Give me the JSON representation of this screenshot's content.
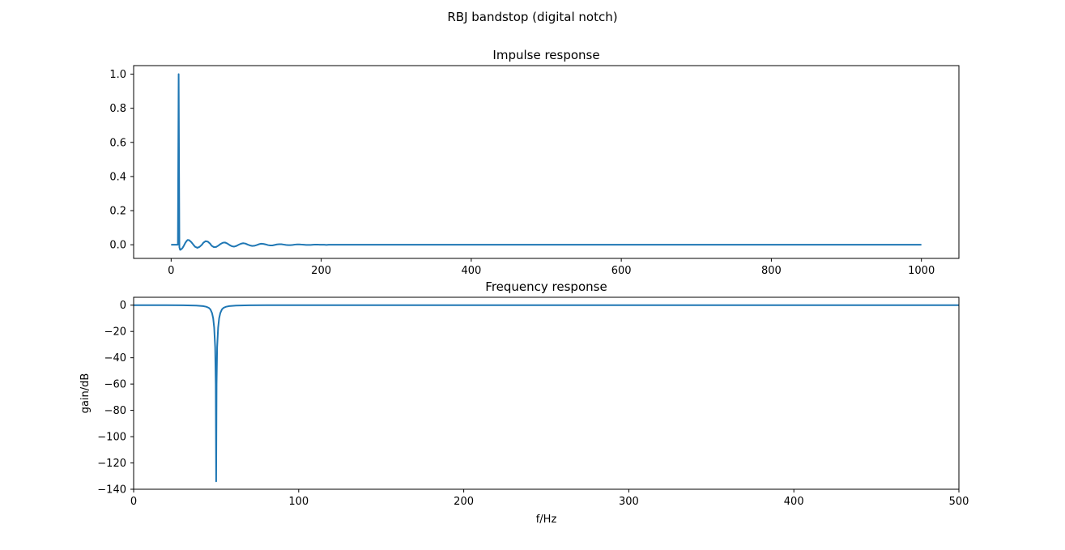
{
  "figure": {
    "suptitle": "RBJ bandstop (digital notch)"
  },
  "colors": {
    "line": "#1f77b4",
    "axes": "#000000",
    "background": "#ffffff"
  },
  "chart_data": [
    {
      "type": "line",
      "title": "Impulse response",
      "xlabel": "",
      "ylabel": "",
      "xlim": [
        -50,
        1050
      ],
      "ylim": [
        -0.08,
        1.05
      ],
      "xticks": [
        0,
        200,
        400,
        600,
        800,
        1000
      ],
      "xtick_labels": [
        "0",
        "200",
        "400",
        "600",
        "800",
        "1000"
      ],
      "yticks": [
        0.0,
        0.2,
        0.4,
        0.6,
        0.8,
        1.0
      ],
      "ytick_labels": [
        "0.0",
        "0.2",
        "0.4",
        "0.6",
        "0.8",
        "1.0"
      ],
      "grid": false,
      "legend": "none",
      "series": [
        {
          "x": [
            0,
            9,
            10,
            10.5,
            11,
            12,
            13,
            15,
            17,
            19,
            21,
            22,
            24,
            27,
            30,
            32,
            35,
            38,
            41,
            43,
            46,
            49,
            52,
            54,
            57,
            60,
            63,
            66,
            69,
            72,
            75,
            78,
            81,
            84,
            87,
            90,
            93,
            96,
            99,
            102,
            105,
            108,
            111,
            114,
            117,
            120,
            123,
            126,
            129,
            132,
            135,
            138,
            141,
            144,
            147,
            150,
            153,
            156,
            159,
            162,
            165,
            168,
            171,
            174,
            177,
            180,
            183,
            186,
            189,
            192,
            195,
            198,
            201,
            204,
            207,
            210,
            213,
            216,
            219,
            222,
            225,
            228,
            231,
            234,
            237,
            240,
            243,
            246,
            249,
            252,
            255,
            258,
            261,
            264,
            267,
            270,
            275,
            300,
            400,
            600,
            800,
            1000
          ],
          "y": [
            0.0,
            0.0,
            1.0,
            0.5,
            -0.015,
            -0.03,
            -0.028,
            -0.02,
            -0.005,
            0.012,
            0.024,
            0.028,
            0.027,
            0.015,
            -0.002,
            -0.012,
            -0.018,
            -0.012,
            0.0,
            0.012,
            0.021,
            0.018,
            0.006,
            -0.006,
            -0.014,
            -0.013,
            -0.005,
            0.005,
            0.012,
            0.013,
            0.007,
            -0.002,
            -0.009,
            -0.011,
            -0.007,
            0.0,
            0.006,
            0.009,
            0.007,
            0.001,
            -0.004,
            -0.007,
            -0.006,
            -0.002,
            0.003,
            0.006,
            0.005,
            0.002,
            -0.002,
            -0.004,
            -0.004,
            -0.001,
            0.002,
            0.003,
            0.003,
            0.001,
            -0.001,
            -0.002,
            -0.002,
            -0.001,
            0.001,
            0.002,
            0.002,
            0.001,
            0.0,
            -0.001,
            -0.001,
            -0.001,
            0.0,
            0.001,
            0.001,
            0.0,
            0.0,
            0.0,
            -0.001,
            0.0,
            0.0,
            0.0,
            0.0,
            0.0,
            0.0,
            0.0,
            0.0,
            0.0,
            0.0,
            0.0,
            0.0,
            0.0,
            0.0,
            0.0,
            0.0,
            0.0,
            0.0,
            0.0,
            0.0,
            0.0,
            0.0,
            0.0,
            0.0,
            0.0,
            0.0,
            0.0
          ]
        }
      ]
    },
    {
      "type": "line",
      "title": "Frequency response",
      "xlabel": "f/Hz",
      "ylabel": "gain/dB",
      "xlim": [
        0,
        500
      ],
      "ylim": [
        -140,
        6
      ],
      "xticks": [
        0,
        100,
        200,
        300,
        400,
        500
      ],
      "xtick_labels": [
        "0",
        "100",
        "200",
        "300",
        "400",
        "500"
      ],
      "yticks": [
        0,
        -20,
        -40,
        -60,
        -80,
        -100,
        -120,
        -140
      ],
      "ytick_labels": [
        "0",
        "−20",
        "−40",
        "−60",
        "−80",
        "−100",
        "−120",
        "−140"
      ],
      "grid": false,
      "legend": "none",
      "series": [
        {
          "x": [
            0,
            20,
            30,
            38,
            42,
            44,
            45.5,
            46.5,
            47.5,
            48.2,
            48.8,
            49.4,
            49.75,
            50,
            50.25,
            50.6,
            51.2,
            51.8,
            52.5,
            53.5,
            54.5,
            56,
            58,
            62,
            70,
            80,
            100,
            200,
            300,
            400,
            500
          ],
          "y": [
            0,
            0,
            -0.1,
            -0.3,
            -0.7,
            -1.2,
            -2.0,
            -3.2,
            -6,
            -10,
            -17,
            -32,
            -60,
            -134,
            -60,
            -32,
            -17,
            -10,
            -6,
            -3.2,
            -2.0,
            -1.2,
            -0.7,
            -0.3,
            -0.1,
            0,
            0,
            0,
            0,
            0,
            0
          ]
        }
      ]
    }
  ]
}
